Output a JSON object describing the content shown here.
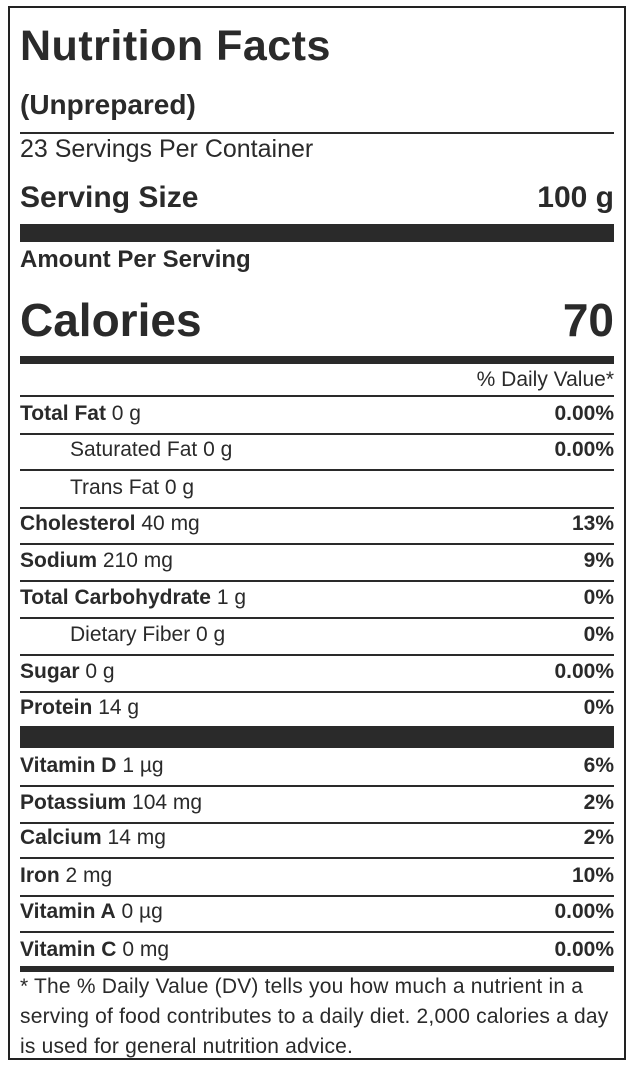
{
  "title": "Nutrition Facts",
  "subtitle": "(Unprepared)",
  "servings_per_container": "23 Servings Per Container",
  "serving_size": {
    "label": "Serving Size",
    "value": "100 g"
  },
  "amount_per_serving": "Amount Per Serving",
  "calories": {
    "label": "Calories",
    "value": "70"
  },
  "daily_value_header": "% Daily Value*",
  "nutrients": [
    {
      "name": "Total Fat",
      "amount": "0 g",
      "dv": "0.00%",
      "indent": false,
      "bold_name": true
    },
    {
      "name": "Saturated Fat",
      "amount": "0 g",
      "dv": "0.00%",
      "indent": true,
      "bold_name": false
    },
    {
      "name": "Trans Fat",
      "amount": "0 g",
      "dv": "",
      "indent": true,
      "bold_name": false
    },
    {
      "name": "Cholesterol",
      "amount": "40 mg",
      "dv": "13%",
      "indent": false,
      "bold_name": true
    },
    {
      "name": "Sodium",
      "amount": "210 mg",
      "dv": "9%",
      "indent": false,
      "bold_name": true
    },
    {
      "name": "Total Carbohydrate",
      "amount": "1 g",
      "dv": "0%",
      "indent": false,
      "bold_name": true
    },
    {
      "name": "Dietary Fiber",
      "amount": "0 g",
      "dv": "0%",
      "indent": true,
      "bold_name": false
    },
    {
      "name": "Sugar",
      "amount": "0 g",
      "dv": "0.00%",
      "indent": false,
      "bold_name": true
    },
    {
      "name": "Protein",
      "amount": "14 g",
      "dv": "0%",
      "indent": false,
      "bold_name": true
    }
  ],
  "vitamins_minerals": [
    {
      "name": "Vitamin D",
      "amount": "1 µg",
      "dv": "6%"
    },
    {
      "name": "Potassium",
      "amount": "104 mg",
      "dv": "2%"
    },
    {
      "name": "Calcium",
      "amount": "14 mg",
      "dv": "2%"
    },
    {
      "name": "Iron",
      "amount": "2 mg",
      "dv": "10%"
    },
    {
      "name": "Vitamin A",
      "amount": "0 µg",
      "dv": "0.00%"
    },
    {
      "name": "Vitamin C",
      "amount": "0 mg",
      "dv": "0.00%"
    }
  ],
  "footnote": "* The % Daily Value (DV) tells you how much a nutrient in a serving of food contributes to a daily diet. 2,000 calories a day is used for general nutrition advice.",
  "colors": {
    "text": "#2a2a2a",
    "rule": "#2a2a2a",
    "background": "#ffffff"
  }
}
